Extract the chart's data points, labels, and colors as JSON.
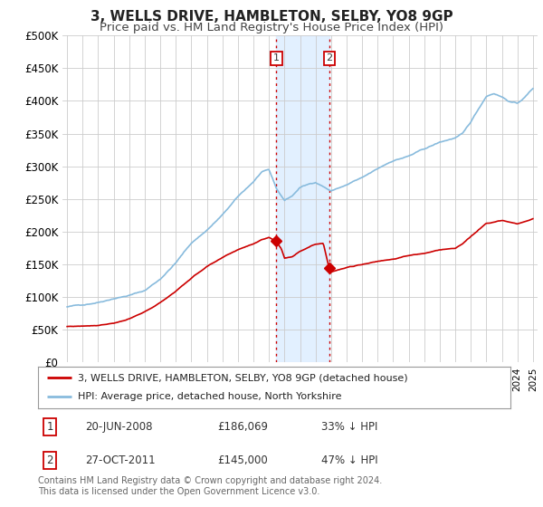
{
  "title": "3, WELLS DRIVE, HAMBLETON, SELBY, YO8 9GP",
  "subtitle": "Price paid vs. HM Land Registry's House Price Index (HPI)",
  "title_fontsize": 11,
  "subtitle_fontsize": 9.5,
  "ylabel_ticks": [
    "£0",
    "£50K",
    "£100K",
    "£150K",
    "£200K",
    "£250K",
    "£300K",
    "£350K",
    "£400K",
    "£450K",
    "£500K"
  ],
  "ytick_values": [
    0,
    50000,
    100000,
    150000,
    200000,
    250000,
    300000,
    350000,
    400000,
    450000,
    500000
  ],
  "ylim": [
    0,
    500000
  ],
  "xlim_start": 1994.7,
  "xlim_end": 2025.3,
  "background_color": "#ffffff",
  "grid_color": "#cccccc",
  "hpi_color": "#88bbdd",
  "price_color": "#cc0000",
  "transaction1_date": 2008.47,
  "transaction1_price": 186069,
  "transaction2_date": 2011.9,
  "transaction2_price": 145000,
  "shade_color": "#ddeeff",
  "vline_color": "#cc0000",
  "legend_label_price": "3, WELLS DRIVE, HAMBLETON, SELBY, YO8 9GP (detached house)",
  "legend_label_hpi": "HPI: Average price, detached house, North Yorkshire",
  "footer_text": "Contains HM Land Registry data © Crown copyright and database right 2024.\nThis data is licensed under the Open Government Licence v3.0."
}
